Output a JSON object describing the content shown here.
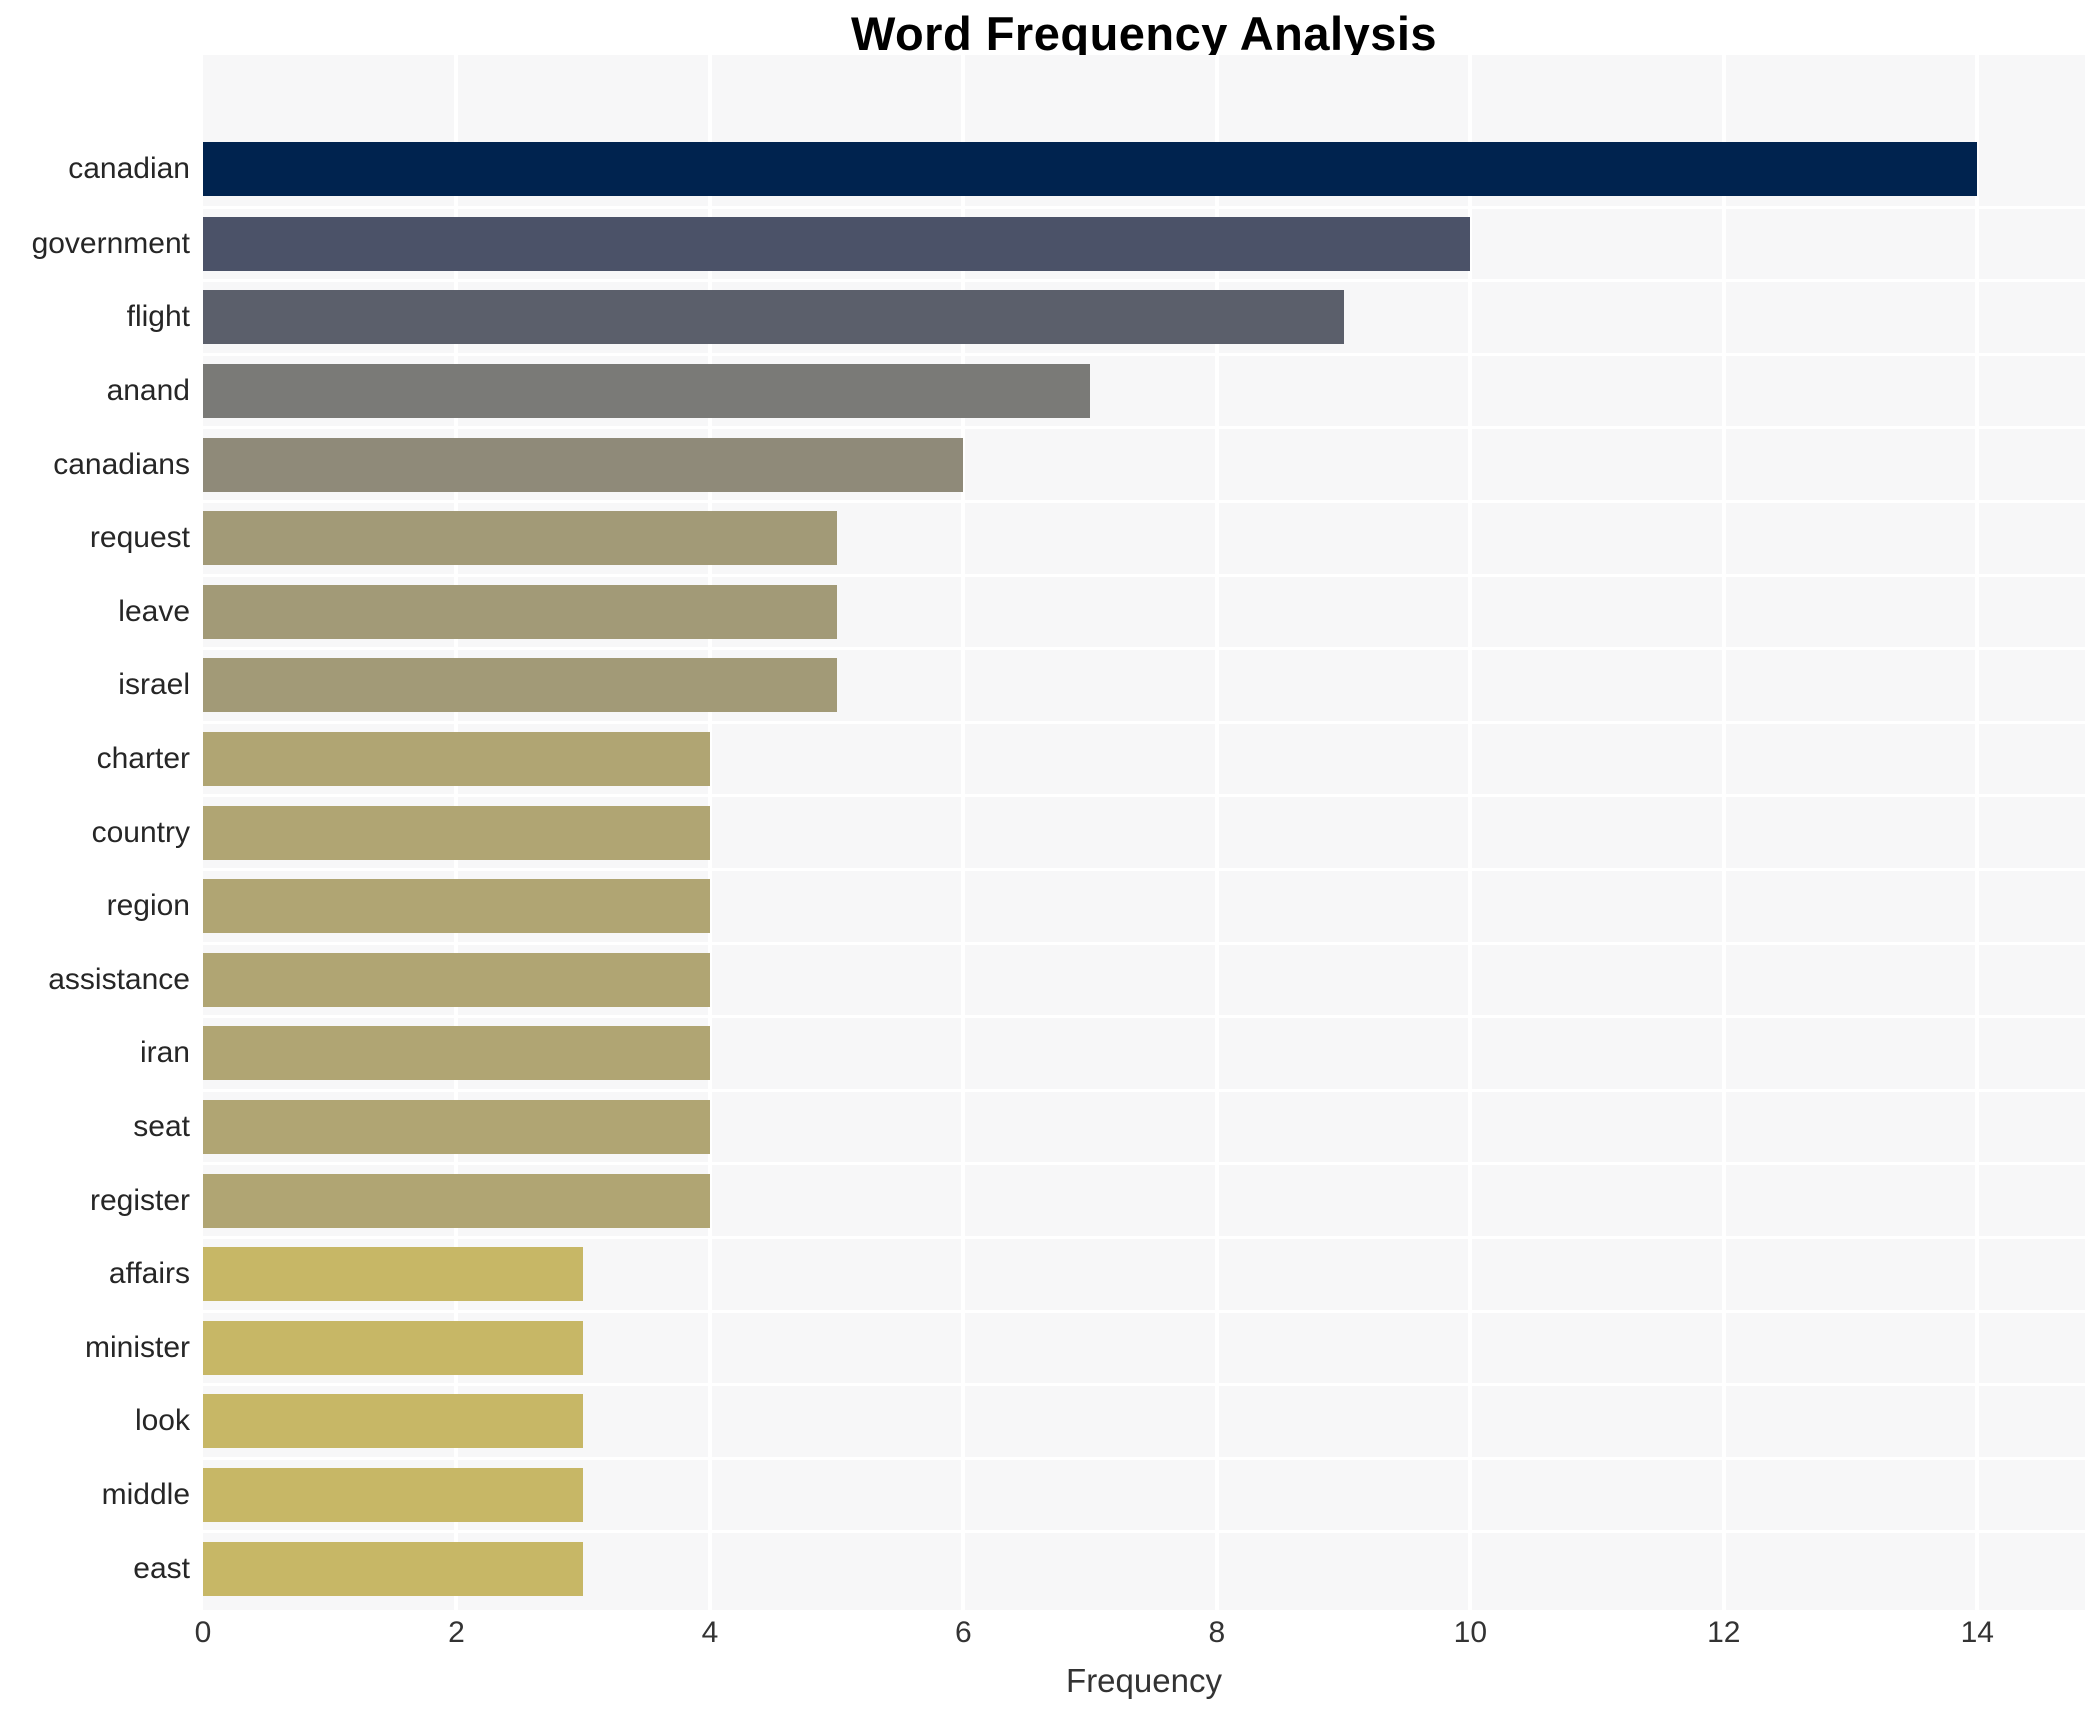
{
  "chart_data": {
    "type": "bar",
    "orientation": "horizontal",
    "title": "Word Frequency Analysis",
    "xlabel": "Frequency",
    "ylabel": "",
    "categories": [
      "canadian",
      "government",
      "flight",
      "anand",
      "canadians",
      "request",
      "leave",
      "israel",
      "charter",
      "country",
      "region",
      "assistance",
      "iran",
      "seat",
      "register",
      "affairs",
      "minister",
      "look",
      "middle",
      "east"
    ],
    "values": [
      14,
      10,
      9,
      7,
      6,
      5,
      5,
      5,
      4,
      4,
      4,
      4,
      4,
      4,
      4,
      3,
      3,
      3,
      3,
      3
    ],
    "bar_colors": [
      "#00234f",
      "#4b5268",
      "#5b5f6b",
      "#7a7a77",
      "#8f8a79",
      "#a29a77",
      "#a29a77",
      "#a29a77",
      "#b0a573",
      "#b0a573",
      "#b0a573",
      "#b0a573",
      "#b0a573",
      "#b0a573",
      "#b0a573",
      "#c7b766",
      "#c7b766",
      "#c7b766",
      "#c7b766",
      "#c7b766"
    ],
    "xticks": [
      0,
      2,
      4,
      6,
      8,
      10,
      12,
      14
    ],
    "xlim": [
      0,
      14.85
    ],
    "grid": "on",
    "gridline_color": "#ffffff",
    "plot_background": "#f7f7f8",
    "figure_background": "#ffffff",
    "legend": "none"
  }
}
